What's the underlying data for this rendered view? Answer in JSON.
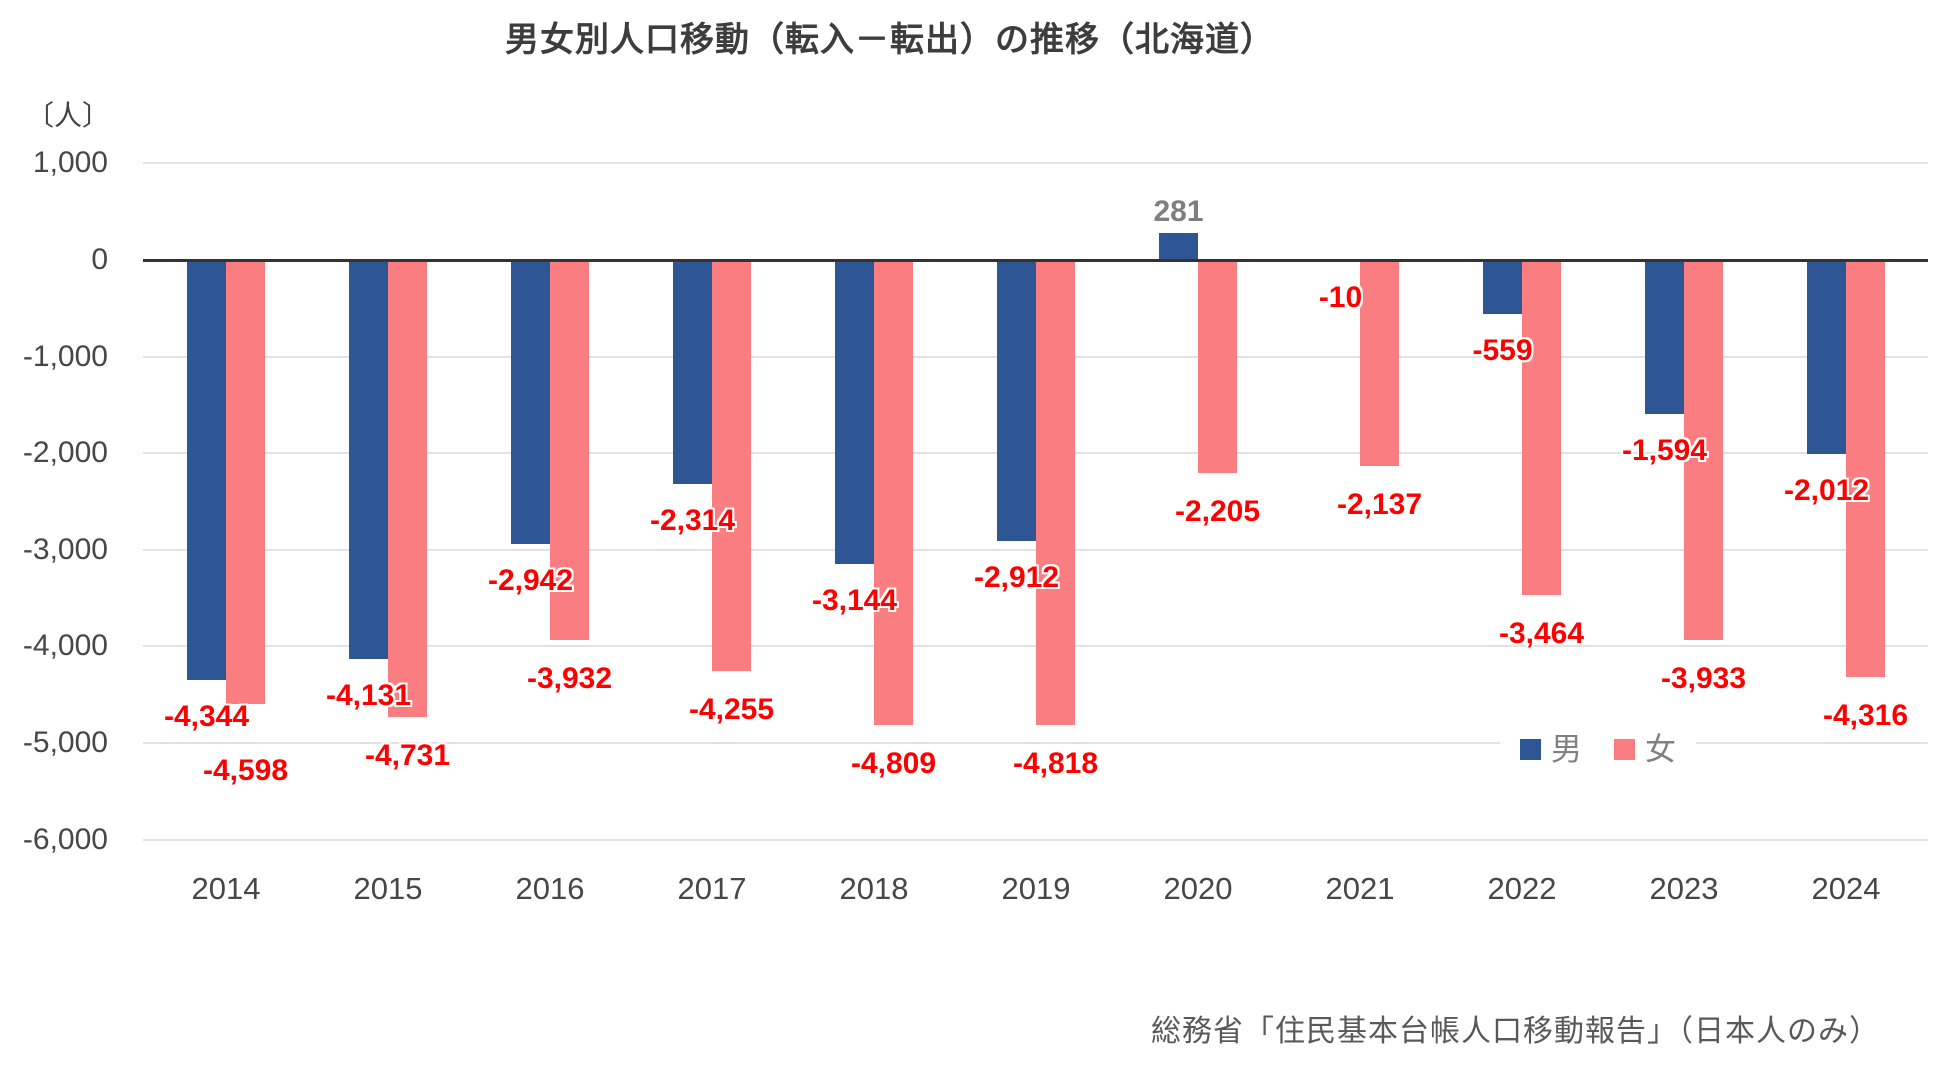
{
  "title": "男女別人口移動（転入－転出）の推移（北海道）",
  "unit_label": "〔人〕",
  "source_note": "総務省「住民基本台帳人口移動報告」（日本人のみ）",
  "legend": {
    "male_label": "男",
    "female_label": "女"
  },
  "colors": {
    "male_bar": "#2e5694",
    "female_bar": "#fa7d82",
    "negative_label": "#ff0000",
    "positive_label": "#7f7f7f",
    "gridline": "#e2e2e2",
    "zero_line": "#333333",
    "axis_text": "#474747",
    "legend_text": "#808080",
    "source_text": "#595959"
  },
  "chart_data": {
    "type": "bar",
    "title": "男女別人口移動（転入－転出）の推移（北海道）",
    "unit": "人",
    "categories": [
      "2014",
      "2015",
      "2016",
      "2017",
      "2018",
      "2019",
      "2020",
      "2021",
      "2022",
      "2023",
      "2024"
    ],
    "series": [
      {
        "name": "男",
        "color": "#2e5694",
        "values": [
          -4344,
          -4131,
          -2942,
          -2314,
          -3144,
          -2912,
          281,
          -10,
          -559,
          -1594,
          -2012
        ],
        "labels": [
          "-4,344",
          "-4,131",
          "-2,942",
          "-2,314",
          "-3,144",
          "-2,912",
          "281",
          "-10",
          "-559",
          "-1,594",
          "-2,012"
        ]
      },
      {
        "name": "女",
        "color": "#fa7d82",
        "values": [
          -4598,
          -4731,
          -3932,
          -4255,
          -4809,
          -4818,
          -2205,
          -2137,
          -3464,
          -3933,
          -4316
        ],
        "labels": [
          "-4,598",
          "-4,731",
          "-3,932",
          "-4,255",
          "-4,809",
          "-4,818",
          "-2,205",
          "-2,137",
          "-3,464",
          "-3,933",
          "-4,316"
        ]
      }
    ],
    "ylim": [
      -6000,
      1000
    ],
    "ytick_values": [
      1000,
      0,
      -1000,
      -2000,
      -3000,
      -4000,
      -5000,
      -6000
    ],
    "ytick_labels": [
      "1,000",
      "0",
      "-1,000",
      "-2,000",
      "-3,000",
      "-4,000",
      "-5,000",
      "-6,000"
    ],
    "grid": "horizontal",
    "legend_position": "inside-bottom-right"
  }
}
